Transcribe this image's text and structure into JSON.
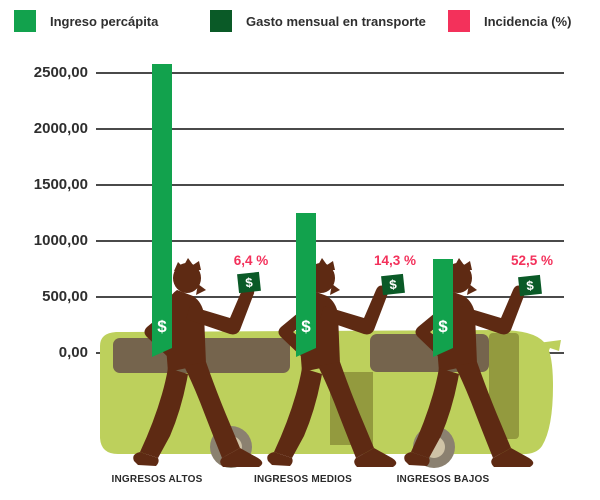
{
  "symbols": {
    "dollar": "$"
  },
  "colors": {
    "grid": "#4a4a4a",
    "figure": "#5e2a13",
    "bus_body": "#bdd05c",
    "bus_window": "#75644d",
    "bus_door": "#939a3e",
    "wheel": "#8b8170",
    "wheel_hub": "#cfc3a6"
  },
  "chart_data": {
    "type": "bar",
    "title": "",
    "categories": [
      "INGRESOS ALTOS",
      "INGRESOS MEDIOS",
      "INGRESOS BAJOS"
    ],
    "series": [
      {
        "name": "Ingreso percápita",
        "color": "#12a24d",
        "values": [
          2580,
          1250,
          840
        ],
        "note": "values estimated from gridlines; bars carried like planks by walking figures"
      },
      {
        "name": "Gasto mensual en transporte",
        "color": "#0a5a27",
        "values": [
          null,
          null,
          null
        ],
        "note": "depicted only as small $ bills held in each figure's hand, not drawn to scale"
      },
      {
        "name": "Incidencia (%)",
        "color": "#f3315b",
        "values": [
          6.4,
          14.3,
          52.5
        ],
        "labels": [
          "6,4 %",
          "14,3 %",
          "52,5 %"
        ],
        "note": "shown as pink data labels above the $ bills"
      }
    ],
    "ylabel": "",
    "ylim": [
      0,
      2500
    ],
    "y_ticks": [
      0,
      500,
      1000,
      1500,
      2000,
      2500
    ],
    "y_tick_labels": [
      "0,00",
      "500,00",
      "1000,00",
      "1500,00",
      "2000,00",
      "2500,00"
    ],
    "grid": true,
    "legend_position": "top",
    "illustration": "three dark-brown walking silhouettes in front of a yellow-green bus"
  }
}
